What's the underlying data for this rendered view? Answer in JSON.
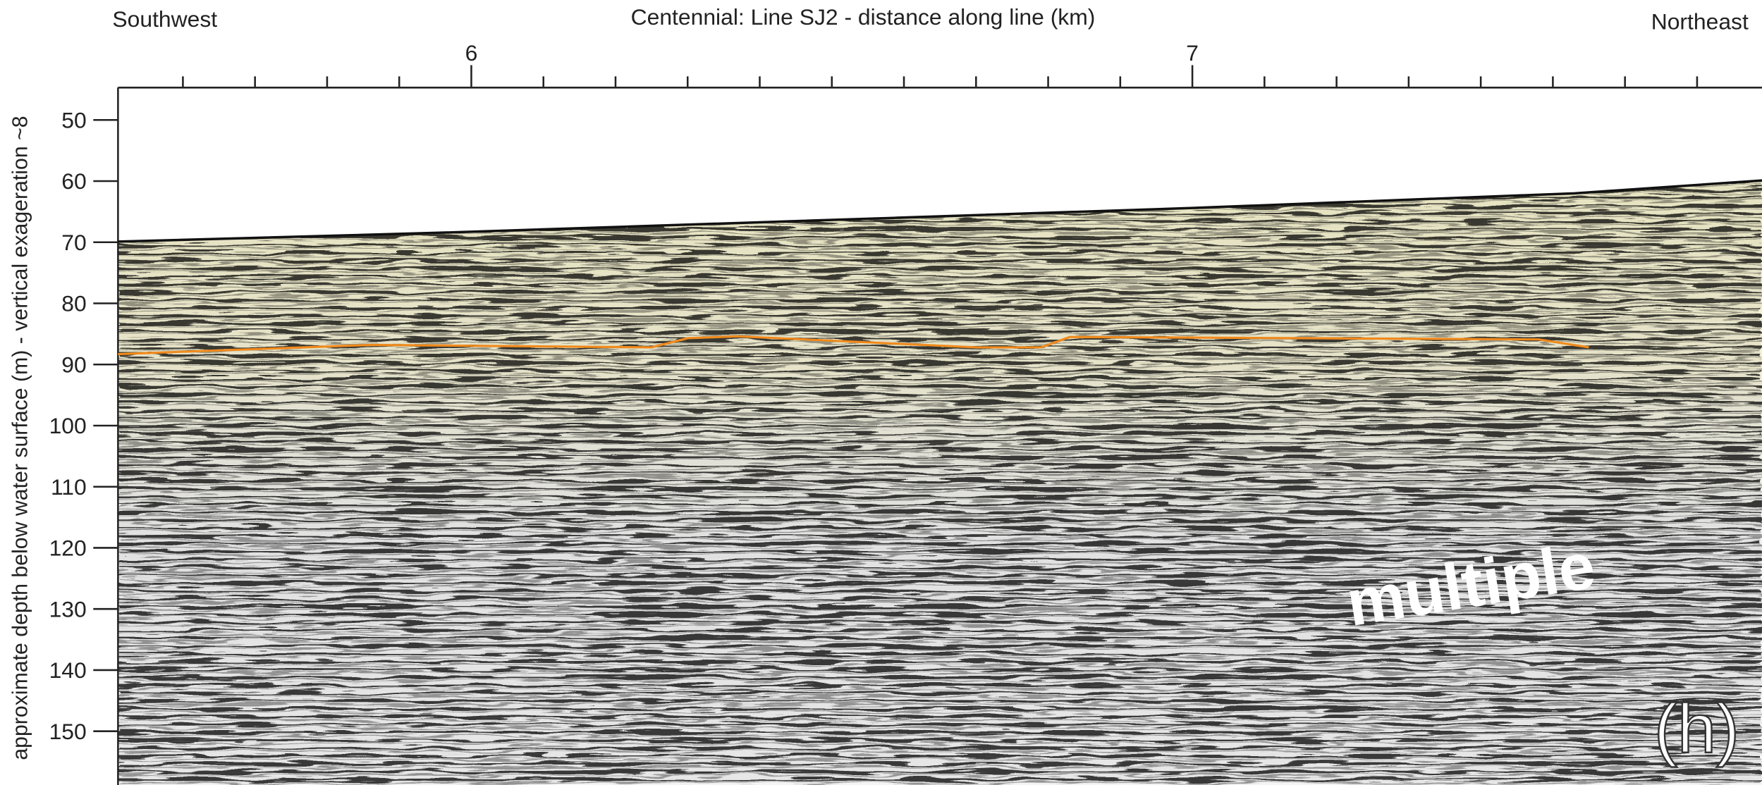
{
  "chart_data": {
    "type": "seismic-profile",
    "title": "Centennial: Line SJ2 - distance along line (km)",
    "left_label": "Southwest",
    "right_label": "Northeast",
    "ylabel": "approximate depth below water surface (m) - vertical exageration ~8",
    "annotations": [
      "multiple",
      "(h)"
    ],
    "xlim": [
      5.51,
      7.79
    ],
    "xticks": [
      6,
      7
    ],
    "xminor_ticks": [
      5.6,
      5.7,
      5.8,
      5.9,
      6.1,
      6.2,
      6.3,
      6.4,
      6.5,
      6.6,
      6.7,
      6.8,
      6.9,
      7.1,
      7.2,
      7.3,
      7.4,
      7.5,
      7.6,
      7.7
    ],
    "ylim": [
      44.7,
      158.8
    ],
    "y_inverted": true,
    "yticks": [
      50,
      60,
      70,
      80,
      90,
      100,
      110,
      120,
      130,
      140,
      150
    ],
    "series": [
      {
        "color": "#111111",
        "x": [
          5.51,
          5.97,
          6.59,
          7.0,
          7.53,
          7.79
        ],
        "values": [
          69.9,
          68.4,
          66.0,
          64.4,
          62.0,
          59.9
        ]
      },
      {
        "color": "#f08a1c",
        "x": [
          5.51,
          5.86,
          6.25,
          6.3,
          6.37,
          6.7,
          6.79,
          6.83,
          7.48,
          7.55
        ],
        "values": [
          88.3,
          86.8,
          87.2,
          85.7,
          85.4,
          87.2,
          87.2,
          85.5,
          85.9,
          87.2
        ]
      }
    ]
  }
}
